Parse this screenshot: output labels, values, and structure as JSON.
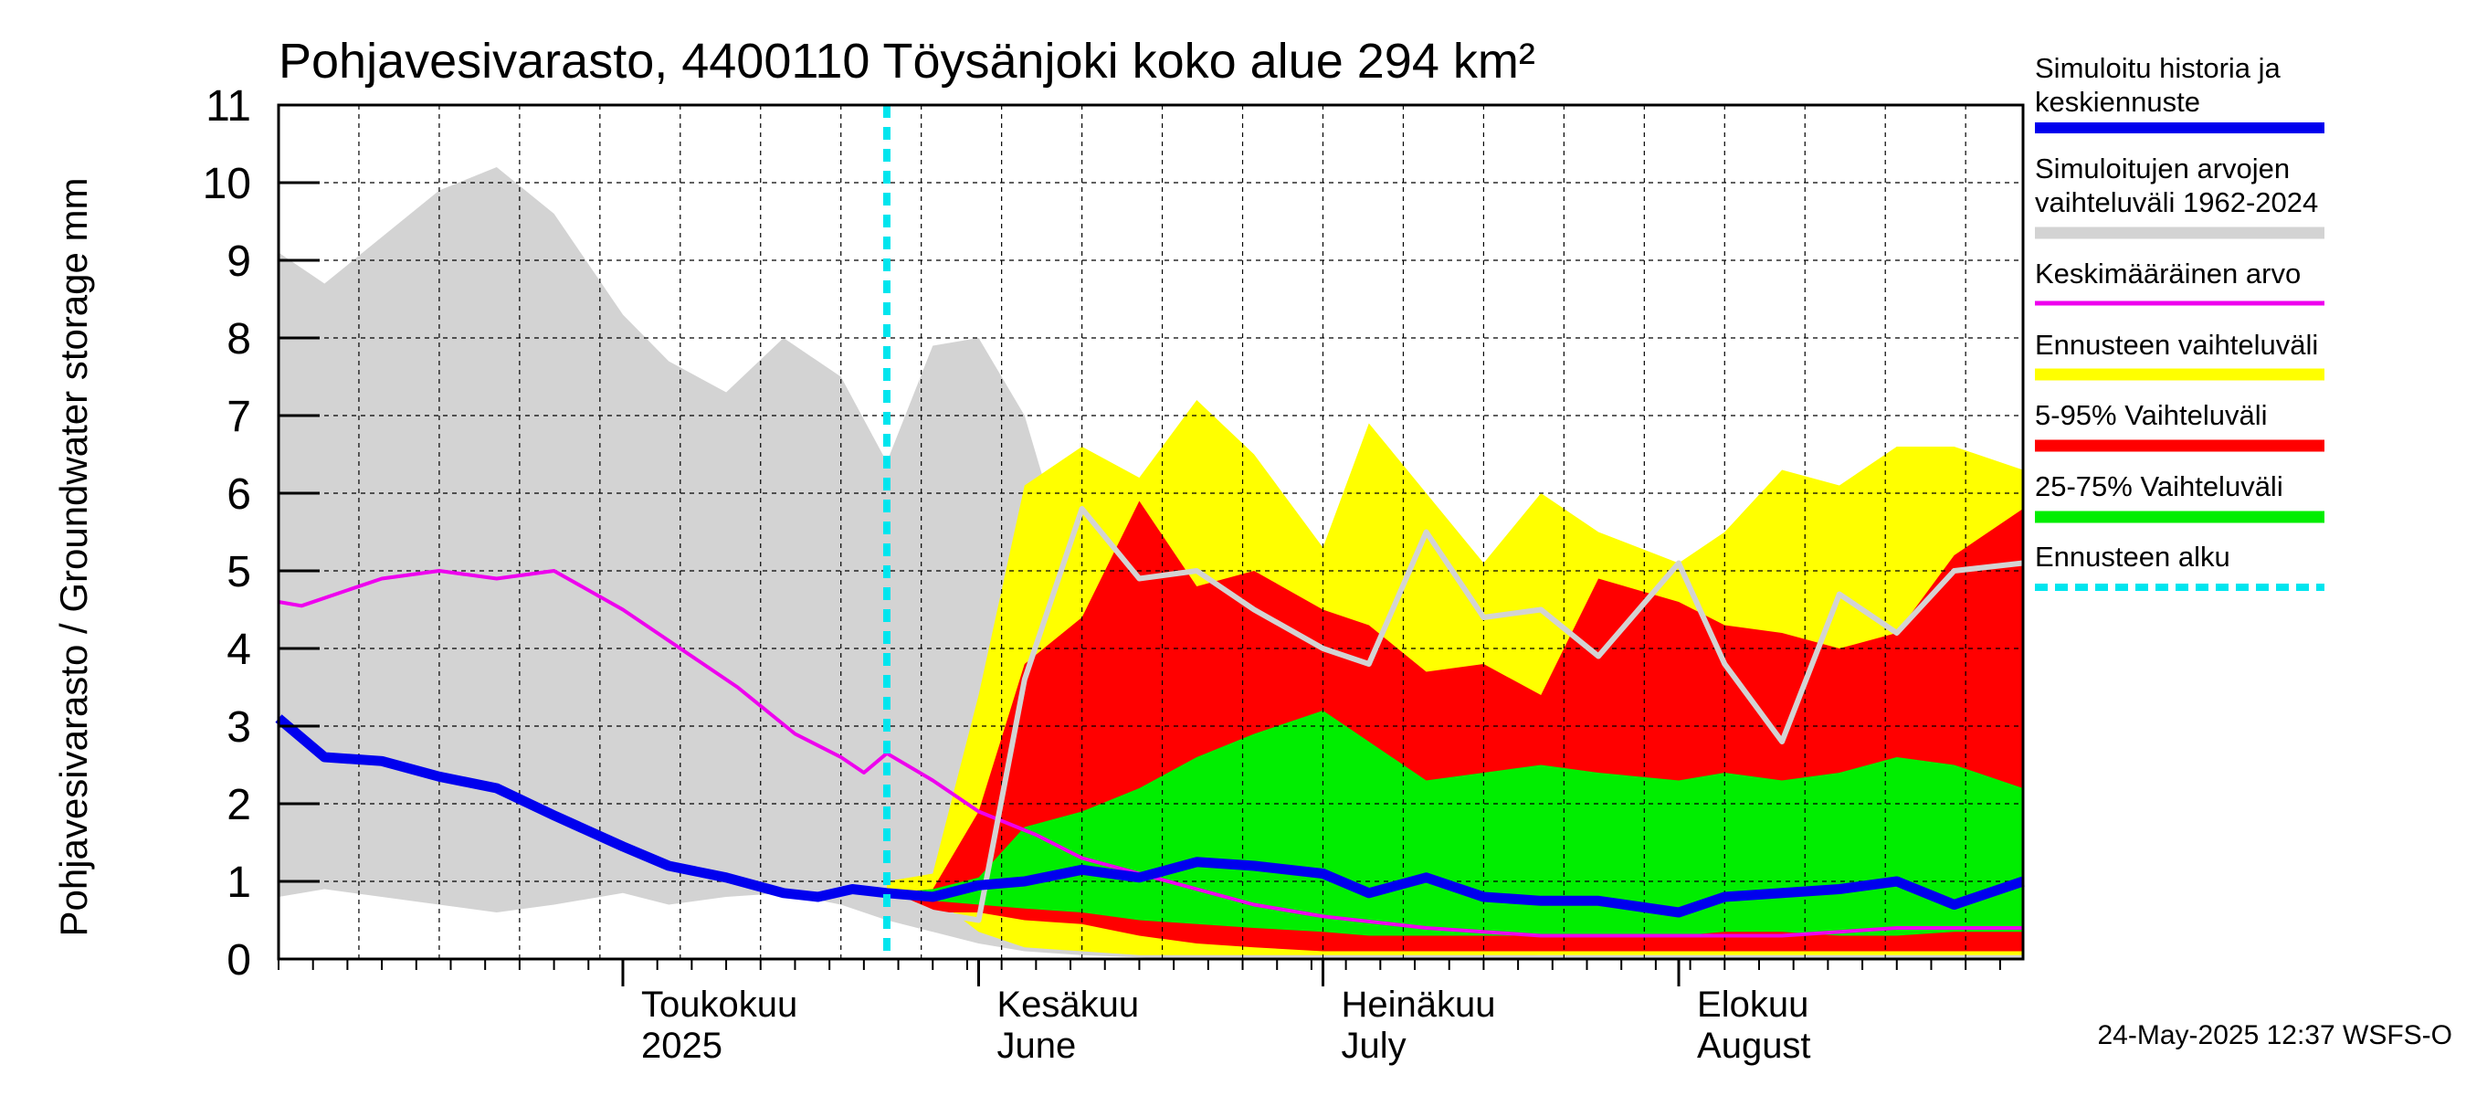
{
  "chart_data": {
    "type": "area",
    "title": "Pohjavesivarasto, 4400110 Töysänjoki koko alue 294 km²",
    "ylabel": "Pohjavesivarasto / Groundwater storage   mm",
    "ylim": [
      0,
      11
    ],
    "yticks": [
      "0",
      "1",
      "2",
      "3",
      "4",
      "5",
      "6",
      "7",
      "8",
      "9",
      "10",
      "11"
    ],
    "xlim": [
      "2025-04-01",
      "2025-08-31"
    ],
    "grid": true,
    "months": [
      {
        "fi": "Toukokuu",
        "en": "2025",
        "date": "2025-05-01"
      },
      {
        "fi": "Kesäkuu",
        "en": "June",
        "date": "2025-06-01"
      },
      {
        "fi": "Heinäkuu",
        "en": "July",
        "date": "2025-07-01"
      },
      {
        "fi": "Elokuu",
        "en": "August",
        "date": "2025-08-01"
      }
    ],
    "forecast_start": "2025-05-24",
    "footer": "24-May-2025 12:37 WSFS-O",
    "legend": [
      {
        "label": "Simuloitu historia ja keskiennuste",
        "color": "#0000ee"
      },
      {
        "label": "Simuloitujen arvojen vaihteluväli 1962-2024",
        "color": "#d3d3d3"
      },
      {
        "label": "Keskimääräinen arvo",
        "color": "#ee00ee"
      },
      {
        "label": "Ennusteen vaihteluväli",
        "color": "#ffff00"
      },
      {
        "label": "5-95% Vaihteluväli",
        "color": "#ff0000"
      },
      {
        "label": "25-75% Vaihteluväli",
        "color": "#00ee00"
      },
      {
        "label": "Ennusteen alku",
        "color": "#00e5ee"
      }
    ],
    "series": [
      {
        "name": "Simuloitujen arvojen vaihteluväli 1962-2024",
        "kind": "band",
        "x": [
          "2025-04-01",
          "2025-04-05",
          "2025-04-10",
          "2025-04-15",
          "2025-04-20",
          "2025-04-25",
          "2025-05-01",
          "2025-05-05",
          "2025-05-10",
          "2025-05-15",
          "2025-05-20",
          "2025-05-24",
          "2025-05-28",
          "2025-06-01",
          "2025-06-05",
          "2025-06-10",
          "2025-06-15",
          "2025-06-20",
          "2025-06-25",
          "2025-06-30",
          "2025-07-10",
          "2025-07-20",
          "2025-08-01",
          "2025-08-31"
        ],
        "upper": [
          9.1,
          8.7,
          9.3,
          9.9,
          10.2,
          9.6,
          8.3,
          7.7,
          7.3,
          8.0,
          7.5,
          6.4,
          7.9,
          8.0,
          7.0,
          4.5,
          2.0,
          0.8,
          0.4,
          0.2,
          0.1,
          0.05,
          0.05,
          0.05
        ],
        "lower": [
          0.8,
          0.9,
          0.8,
          0.7,
          0.6,
          0.7,
          0.85,
          0.7,
          0.8,
          0.85,
          0.7,
          0.5,
          0.35,
          0.2,
          0.1,
          0.05,
          0.02,
          0.0,
          0.0,
          0.0,
          0.0,
          0.0,
          0.0,
          0.0
        ]
      },
      {
        "name": "Ennusteen vaihteluväli",
        "kind": "band",
        "x": [
          "2025-05-24",
          "2025-05-28",
          "2025-06-01",
          "2025-06-05",
          "2025-06-10",
          "2025-06-15",
          "2025-06-20",
          "2025-06-25",
          "2025-07-01",
          "2025-07-05",
          "2025-07-10",
          "2025-07-15",
          "2025-07-20",
          "2025-07-25",
          "2025-08-01",
          "2025-08-05",
          "2025-08-10",
          "2025-08-15",
          "2025-08-20",
          "2025-08-25",
          "2025-08-31"
        ],
        "upper": [
          1.0,
          1.1,
          3.4,
          6.1,
          6.6,
          6.2,
          7.2,
          6.5,
          5.3,
          6.9,
          6.0,
          5.1,
          6.0,
          5.5,
          5.1,
          5.5,
          6.3,
          6.1,
          6.6,
          6.6,
          6.3
        ],
        "lower": [
          0.9,
          0.8,
          0.35,
          0.15,
          0.1,
          0.05,
          0.05,
          0.05,
          0.05,
          0.05,
          0.05,
          0.05,
          0.05,
          0.05,
          0.05,
          0.05,
          0.05,
          0.05,
          0.05,
          0.05,
          0.05
        ]
      },
      {
        "name": "5-95% Vaihteluväli",
        "kind": "band",
        "x": [
          "2025-05-24",
          "2025-05-28",
          "2025-06-01",
          "2025-06-05",
          "2025-06-10",
          "2025-06-15",
          "2025-06-20",
          "2025-06-25",
          "2025-07-01",
          "2025-07-05",
          "2025-07-10",
          "2025-07-15",
          "2025-07-20",
          "2025-07-25",
          "2025-08-01",
          "2025-08-05",
          "2025-08-10",
          "2025-08-15",
          "2025-08-20",
          "2025-08-25",
          "2025-08-31"
        ],
        "upper": [
          0.85,
          0.9,
          1.9,
          3.8,
          4.4,
          5.9,
          4.8,
          5.0,
          4.5,
          4.3,
          3.7,
          3.8,
          3.4,
          4.9,
          4.6,
          4.3,
          4.2,
          4.0,
          4.2,
          5.2,
          5.8
        ],
        "lower": [
          0.85,
          0.6,
          0.6,
          0.5,
          0.45,
          0.3,
          0.2,
          0.15,
          0.1,
          0.1,
          0.1,
          0.1,
          0.1,
          0.1,
          0.1,
          0.1,
          0.1,
          0.1,
          0.1,
          0.1,
          0.1
        ]
      },
      {
        "name": "25-75% Vaihteluväli",
        "kind": "band",
        "x": [
          "2025-05-24",
          "2025-05-28",
          "2025-06-01",
          "2025-06-05",
          "2025-06-10",
          "2025-06-15",
          "2025-06-20",
          "2025-06-25",
          "2025-07-01",
          "2025-07-05",
          "2025-07-10",
          "2025-07-15",
          "2025-07-20",
          "2025-07-25",
          "2025-08-01",
          "2025-08-05",
          "2025-08-10",
          "2025-08-15",
          "2025-08-20",
          "2025-08-25",
          "2025-08-31"
        ],
        "upper": [
          0.85,
          0.9,
          1.05,
          1.7,
          1.9,
          2.2,
          2.6,
          2.9,
          3.2,
          2.8,
          2.3,
          2.4,
          2.5,
          2.4,
          2.3,
          2.4,
          2.3,
          2.4,
          2.6,
          2.5,
          2.2
        ],
        "lower": [
          0.85,
          0.75,
          0.7,
          0.65,
          0.6,
          0.5,
          0.45,
          0.4,
          0.35,
          0.3,
          0.3,
          0.3,
          0.3,
          0.3,
          0.3,
          0.35,
          0.35,
          0.3,
          0.3,
          0.35,
          0.35
        ]
      },
      {
        "name": "Keskimääräinen arvo",
        "kind": "line",
        "color": "#ee00ee",
        "x": [
          "2025-04-01",
          "2025-04-03",
          "2025-04-06",
          "2025-04-10",
          "2025-04-15",
          "2025-04-20",
          "2025-04-25",
          "2025-05-01",
          "2025-05-06",
          "2025-05-11",
          "2025-05-16",
          "2025-05-20",
          "2025-05-22",
          "2025-05-24",
          "2025-05-28",
          "2025-06-01",
          "2025-06-06",
          "2025-06-10",
          "2025-06-15",
          "2025-06-20",
          "2025-06-25",
          "2025-07-01",
          "2025-07-10",
          "2025-07-20",
          "2025-08-01",
          "2025-08-10",
          "2025-08-20",
          "2025-08-31"
        ],
        "y": [
          4.6,
          4.55,
          4.7,
          4.9,
          5.0,
          4.9,
          5.0,
          4.5,
          4.0,
          3.5,
          2.9,
          2.6,
          2.4,
          2.65,
          2.3,
          1.9,
          1.6,
          1.3,
          1.1,
          0.9,
          0.7,
          0.55,
          0.4,
          0.3,
          0.3,
          0.3,
          0.4,
          0.4
        ]
      },
      {
        "name": "Simuloitu historia ja keskiennuste",
        "kind": "line",
        "color": "#0000ee",
        "x": [
          "2025-04-01",
          "2025-04-05",
          "2025-04-10",
          "2025-04-15",
          "2025-04-20",
          "2025-04-25",
          "2025-05-01",
          "2025-05-05",
          "2025-05-10",
          "2025-05-15",
          "2025-05-18",
          "2025-05-21",
          "2025-05-24",
          "2025-05-28",
          "2025-06-01",
          "2025-06-05",
          "2025-06-10",
          "2025-06-15",
          "2025-06-20",
          "2025-06-25",
          "2025-07-01",
          "2025-07-05",
          "2025-07-10",
          "2025-07-15",
          "2025-07-20",
          "2025-07-25",
          "2025-08-01",
          "2025-08-05",
          "2025-08-10",
          "2025-08-15",
          "2025-08-20",
          "2025-08-25",
          "2025-08-31"
        ],
        "y": [
          3.1,
          2.6,
          2.55,
          2.35,
          2.2,
          1.85,
          1.45,
          1.2,
          1.05,
          0.85,
          0.8,
          0.9,
          0.85,
          0.8,
          0.95,
          1.0,
          1.15,
          1.05,
          1.25,
          1.2,
          1.1,
          0.85,
          1.05,
          0.8,
          0.75,
          0.75,
          0.6,
          0.8,
          0.85,
          0.9,
          1.0,
          0.7,
          1.0
        ]
      },
      {
        "name": "Median forecast (grey)",
        "kind": "line",
        "color": "#d3d3d3",
        "x": [
          "2025-05-24",
          "2025-05-28",
          "2025-06-01",
          "2025-06-05",
          "2025-06-10",
          "2025-06-15",
          "2025-06-20",
          "2025-06-25",
          "2025-07-01",
          "2025-07-05",
          "2025-07-10",
          "2025-07-15",
          "2025-07-20",
          "2025-07-25",
          "2025-08-01",
          "2025-08-05",
          "2025-08-10",
          "2025-08-15",
          "2025-08-20",
          "2025-08-25",
          "2025-08-31"
        ],
        "y": [
          0.85,
          0.6,
          0.5,
          3.6,
          5.8,
          4.9,
          5.0,
          4.5,
          4.0,
          3.8,
          5.5,
          4.4,
          4.5,
          3.9,
          5.1,
          3.8,
          2.8,
          4.7,
          4.2,
          5.0,
          5.1
        ]
      }
    ]
  }
}
